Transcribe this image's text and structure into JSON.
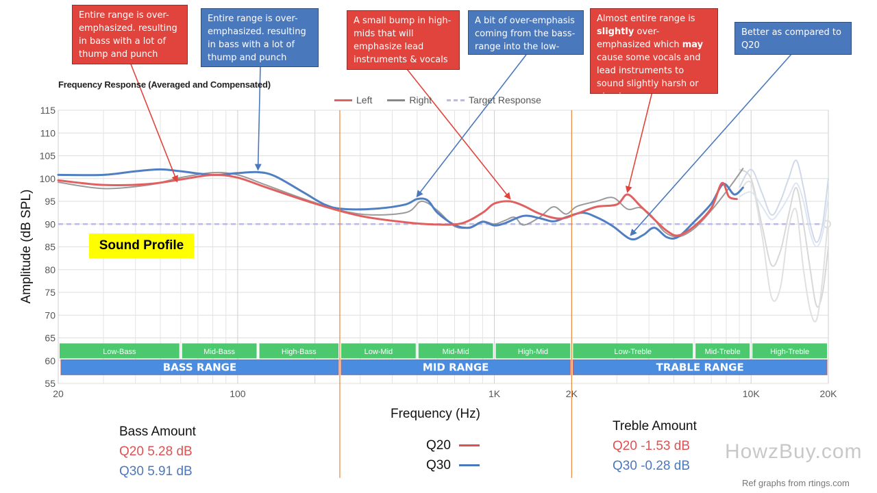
{
  "chart_data": {
    "type": "line",
    "title": "Frequency Response (Averaged and Compensated)",
    "xlabel": "Frequency (Hz)",
    "ylabel": "Amplitude (dB SPL)",
    "xscale": "log",
    "xlim": [
      20,
      20000
    ],
    "ylim": [
      55,
      115
    ],
    "yticks": [
      55,
      60,
      65,
      70,
      75,
      80,
      85,
      90,
      95,
      100,
      105,
      110,
      115
    ],
    "xticks": [
      {
        "value": 20,
        "label": "20"
      },
      {
        "value": 100,
        "label": "100"
      },
      {
        "value": 1000,
        "label": "1K"
      },
      {
        "value": 2000,
        "label": "2K"
      },
      {
        "value": 10000,
        "label": "10K"
      },
      {
        "value": 20000,
        "label": "20K"
      }
    ],
    "legend": [
      "Left",
      "Right",
      "Target Response"
    ],
    "target_db": 90,
    "series": [
      {
        "name": "Left",
        "color": "#e06060",
        "points": [
          [
            20,
            99.6
          ],
          [
            30,
            98.6
          ],
          [
            45,
            98.8
          ],
          [
            60,
            99.8
          ],
          [
            80,
            100.8
          ],
          [
            100,
            100.2
          ],
          [
            130,
            98
          ],
          [
            200,
            94.5
          ],
          [
            300,
            91.8
          ],
          [
            450,
            90.4
          ],
          [
            600,
            89.9
          ],
          [
            750,
            90.2
          ],
          [
            900,
            92.5
          ],
          [
            1000,
            94.5
          ],
          [
            1150,
            95
          ],
          [
            1300,
            94
          ],
          [
            1500,
            92.3
          ],
          [
            1800,
            91.2
          ],
          [
            2100,
            92.3
          ],
          [
            2500,
            93.8
          ],
          [
            3000,
            94.3
          ],
          [
            3300,
            96.5
          ],
          [
            3700,
            94
          ],
          [
            4200,
            91
          ],
          [
            4700,
            88.5
          ],
          [
            5200,
            87.5
          ],
          [
            6000,
            89.5
          ],
          [
            7000,
            93.5
          ],
          [
            7700,
            99
          ],
          [
            8200,
            96
          ],
          [
            8800,
            95.5
          ]
        ]
      },
      {
        "name": "Right",
        "color": "#888888",
        "points": [
          [
            20,
            99.2
          ],
          [
            30,
            97.8
          ],
          [
            45,
            98.6
          ],
          [
            60,
            100.2
          ],
          [
            80,
            101.3
          ],
          [
            100,
            100.8
          ],
          [
            130,
            98.5
          ],
          [
            200,
            94.7
          ],
          [
            300,
            92.2
          ],
          [
            450,
            92.5
          ],
          [
            520,
            95
          ],
          [
            600,
            93
          ],
          [
            700,
            89.5
          ],
          [
            800,
            89.3
          ],
          [
            900,
            90.6
          ],
          [
            1000,
            90
          ],
          [
            1100,
            90.8
          ],
          [
            1200,
            91.5
          ],
          [
            1300,
            89.8
          ],
          [
            1500,
            91.5
          ],
          [
            1700,
            93.8
          ],
          [
            1900,
            92.2
          ],
          [
            2100,
            93.9
          ],
          [
            2500,
            95
          ],
          [
            2900,
            95.8
          ],
          [
            3300,
            93.3
          ],
          [
            3700,
            93.6
          ],
          [
            4100,
            91.8
          ],
          [
            4600,
            88.3
          ],
          [
            5200,
            87.2
          ],
          [
            6000,
            89
          ],
          [
            7000,
            93
          ],
          [
            7800,
            96.3
          ],
          [
            8600,
            99.5
          ],
          [
            9300,
            102.2
          ]
        ]
      },
      {
        "name": "Q30",
        "color": "#4f7ec2",
        "points": [
          [
            20,
            100.8
          ],
          [
            30,
            100.8
          ],
          [
            40,
            101.6
          ],
          [
            50,
            102
          ],
          [
            60,
            101.6
          ],
          [
            80,
            100.8
          ],
          [
            100,
            101.2
          ],
          [
            120,
            101.4
          ],
          [
            140,
            100.5
          ],
          [
            180,
            97
          ],
          [
            220,
            94.2
          ],
          [
            260,
            93.3
          ],
          [
            350,
            93.4
          ],
          [
            450,
            94.3
          ],
          [
            500,
            95.5
          ],
          [
            550,
            95.2
          ],
          [
            600,
            92.5
          ],
          [
            700,
            89.8
          ],
          [
            800,
            89.2
          ],
          [
            900,
            90.5
          ],
          [
            1000,
            89.7
          ],
          [
            1100,
            90.2
          ],
          [
            1300,
            91.8
          ],
          [
            1500,
            91.3
          ],
          [
            1700,
            90.6
          ],
          [
            1900,
            91.5
          ],
          [
            2200,
            92.5
          ],
          [
            2500,
            91.5
          ],
          [
            2900,
            89.5
          ],
          [
            3400,
            86.7
          ],
          [
            3800,
            87.6
          ],
          [
            4200,
            89.2
          ],
          [
            4700,
            87.1
          ],
          [
            5200,
            87.2
          ],
          [
            6000,
            90.5
          ],
          [
            7000,
            94.5
          ],
          [
            7800,
            98.8
          ],
          [
            8600,
            96.5
          ],
          [
            9300,
            98
          ]
        ]
      }
    ],
    "faded_high_treble_traces": [
      {
        "color": "#cfd9e9",
        "points": [
          [
            9000,
            98
          ],
          [
            10000,
            102
          ],
          [
            11000,
            97
          ],
          [
            12000,
            92
          ],
          [
            13000,
            95
          ],
          [
            14000,
            100
          ],
          [
            15000,
            104
          ],
          [
            16000,
            98
          ],
          [
            17000,
            90
          ],
          [
            18000,
            86
          ],
          [
            19000,
            90
          ],
          [
            20000,
            100
          ]
        ]
      },
      {
        "color": "#d8d8d8",
        "points": [
          [
            9000,
            102
          ],
          [
            10000,
            100
          ],
          [
            11000,
            90
          ],
          [
            12000,
            81
          ],
          [
            13000,
            84
          ],
          [
            14000,
            92
          ],
          [
            15000,
            98
          ],
          [
            16000,
            90
          ],
          [
            17000,
            80
          ],
          [
            18000,
            72
          ],
          [
            19000,
            75
          ],
          [
            20000,
            85
          ]
        ]
      },
      {
        "color": "#e0e0e0",
        "points": [
          [
            9000,
            97
          ],
          [
            10000,
            99
          ],
          [
            11000,
            88
          ],
          [
            12000,
            74
          ],
          [
            13000,
            76
          ],
          [
            14000,
            89
          ],
          [
            15000,
            93
          ],
          [
            16000,
            80
          ],
          [
            17000,
            71
          ],
          [
            18000,
            69
          ],
          [
            19000,
            78
          ],
          [
            20000,
            92
          ]
        ]
      },
      {
        "color": "#dde5f1",
        "points": [
          [
            9000,
            96
          ],
          [
            10000,
            97
          ],
          [
            11000,
            94
          ],
          [
            12000,
            91
          ],
          [
            13000,
            93
          ],
          [
            14000,
            96
          ],
          [
            15000,
            99
          ],
          [
            16000,
            95
          ],
          [
            17000,
            88
          ],
          [
            18000,
            85
          ],
          [
            19000,
            88
          ],
          [
            20000,
            96
          ]
        ]
      }
    ],
    "bands": [
      {
        "label": "Low-Bass",
        "from": 20,
        "to": 60
      },
      {
        "label": "Mid-Bass",
        "from": 60,
        "to": 120
      },
      {
        "label": "High-Bass",
        "from": 120,
        "to": 250
      },
      {
        "label": "Low-Mid",
        "from": 250,
        "to": 500
      },
      {
        "label": "Mid-Mid",
        "from": 500,
        "to": 1000
      },
      {
        "label": "High-Mid",
        "from": 1000,
        "to": 2000
      },
      {
        "label": "Low-Treble",
        "from": 2000,
        "to": 6000
      },
      {
        "label": "Mid-Treble",
        "from": 6000,
        "to": 10000
      },
      {
        "label": "High-Treble",
        "from": 10000,
        "to": 20000
      }
    ],
    "ranges": [
      {
        "label": "BASS RANGE",
        "from": 20,
        "to": 250
      },
      {
        "label": "MID RANGE",
        "from": 250,
        "to": 2000
      },
      {
        "label": "TRABLE RANGE",
        "from": 2000,
        "to": 20000
      }
    ],
    "range_dividers_hz": [
      250,
      2000
    ]
  },
  "annotations": [
    {
      "text": "Entire range is over-emphasized. resulting in bass with a lot of thump and punch",
      "color": "red",
      "target": {
        "hz": 58,
        "db": 98.8
      }
    },
    {
      "text": "Entire range is over-emphasized. resulting in bass with a lot of thump and punch",
      "color": "blue",
      "target": {
        "hz": 120,
        "db": 101.4
      }
    },
    {
      "text": "A small bump in high-mids that will emphasize lead instruments & vocals",
      "color": "red",
      "target": {
        "hz": 1150,
        "db": 95
      }
    },
    {
      "text": "A bit of over-emphasis coming from the bass-range into the low-mids",
      "color": "blue",
      "target": {
        "hz": 500,
        "db": 95.5
      }
    },
    {
      "text_parts": [
        "Almost entire range is ",
        "slightly",
        " over-emphasized which ",
        "may",
        " cause some vocals and lead instruments to sound slightly harsh or piercing"
      ],
      "color": "red",
      "target": {
        "hz": 3300,
        "db": 96.5
      }
    },
    {
      "text": "Better as compared to Q20",
      "color": "blue",
      "target": {
        "hz": 3400,
        "db": 87
      }
    }
  ],
  "sound_profile_label": "Sound Profile",
  "bass_amount": {
    "title": "Bass Amount",
    "q20": "Q20 5.28 dB",
    "q30": "Q30 5.91 dB"
  },
  "treble_amount": {
    "title": "Treble Amount",
    "q20": "Q20 -1.53 dB",
    "q30": "Q30 -0.28 dB"
  },
  "model_legend": {
    "q20": "Q20",
    "q30": "Q30",
    "q20_color": "#e05050",
    "q30_color": "#4a78bd"
  },
  "watermark": "HowzBuy.com",
  "credit": "Ref graphs from rtings.com",
  "colors": {
    "band_green": "#4cc96f",
    "range_blue": "#4a8de0",
    "divider_orange": "#e8883a",
    "target": "#b9b9ec"
  }
}
